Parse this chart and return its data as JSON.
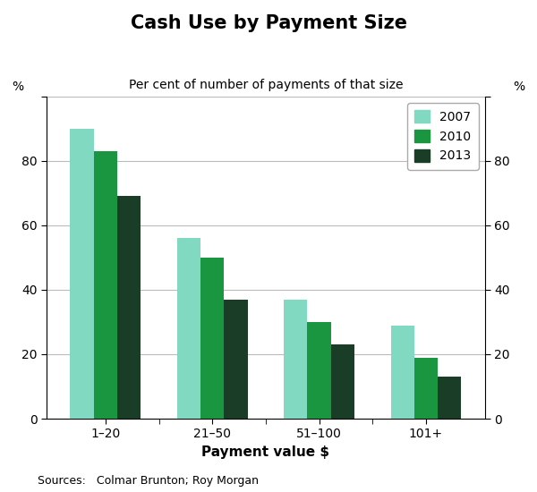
{
  "title": "Cash Use by Payment Size",
  "subtitle": "Per cent of number of payments of that size",
  "xlabel": "Payment value $",
  "ylabel_left": "%",
  "ylabel_right": "%",
  "source": "Sources:   Colmar Brunton; Roy Morgan",
  "categories": [
    "1–20",
    "21–50",
    "51–100",
    "101+"
  ],
  "series": [
    {
      "label": "2007",
      "color": "#80D9C0",
      "values": [
        90,
        56,
        37,
        29
      ]
    },
    {
      "label": "2010",
      "color": "#1A9641",
      "values": [
        83,
        50,
        30,
        19
      ]
    },
    {
      "label": "2013",
      "color": "#1A3D28",
      "values": [
        69,
        37,
        23,
        13
      ]
    }
  ],
  "ylim": [
    0,
    100
  ],
  "yticks": [
    0,
    20,
    40,
    60,
    80,
    100
  ],
  "ytick_labels": [
    "0",
    "20",
    "40",
    "60",
    "80",
    ""
  ],
  "bar_width": 0.22,
  "background_color": "#ffffff",
  "grid_color": "#bbbbbb",
  "title_fontsize": 15,
  "subtitle_fontsize": 10,
  "tick_fontsize": 10,
  "label_fontsize": 11,
  "legend_fontsize": 10,
  "source_fontsize": 9
}
